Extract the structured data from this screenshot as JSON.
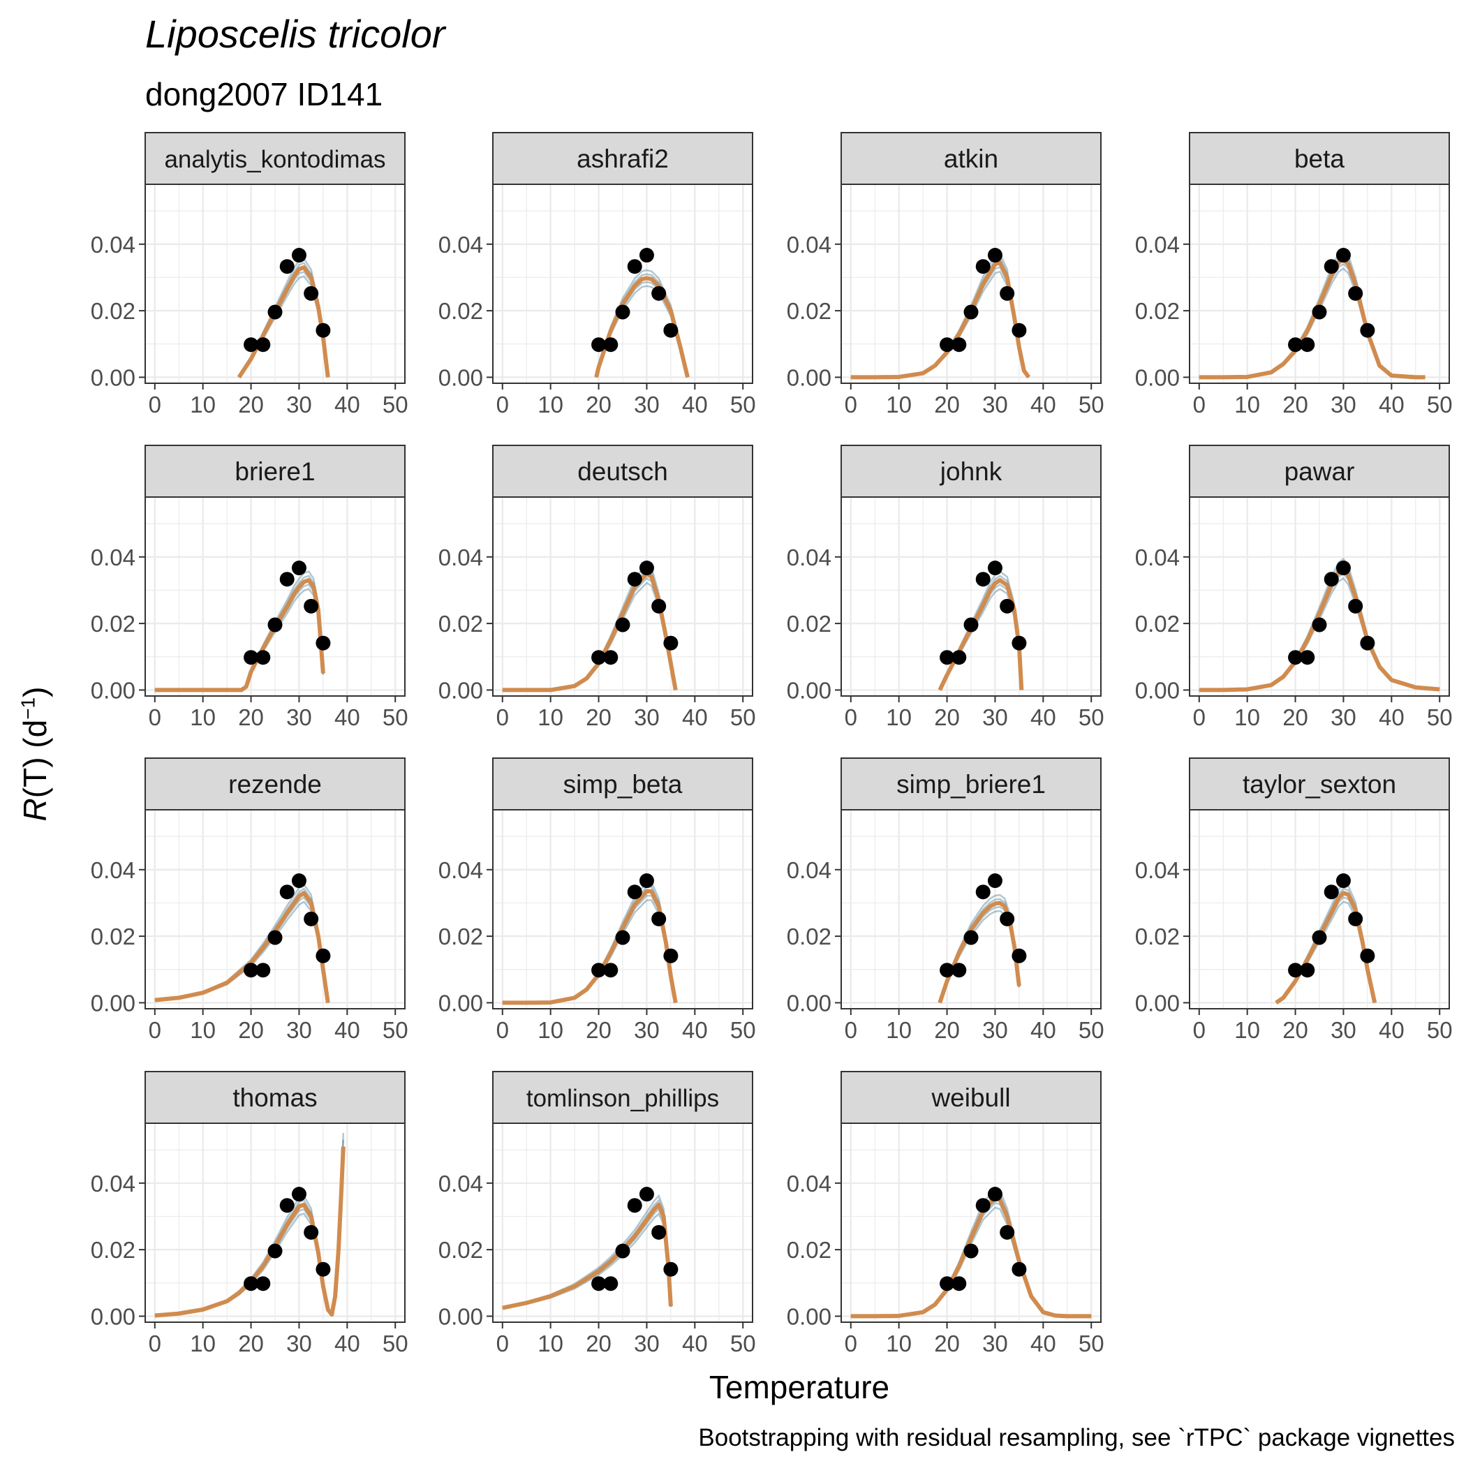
{
  "title": "Liposcelis tricolor",
  "subtitle": "dong2007 ID141",
  "ylabel_prefix": "R",
  "ylabel_mid": "(T) (d",
  "ylabel_sup": "−1",
  "ylabel_suffix": ")",
  "caption": "Bootstrapping with residual resampling, see `rTPC` package vignettes",
  "colors": {
    "observed_point": "#000000",
    "fitted_line": "#d08b4e",
    "bootstrap_lines": "#1f5b78",
    "strip_fill": "#d9d9d9",
    "grid": "#ebebeb",
    "panel_border": "#333333"
  },
  "chart_data": {
    "type": "line",
    "facet": "model",
    "xlabel": "Temperature",
    "ylabel": "R(T) (d−1)",
    "xlim": [
      -2,
      52
    ],
    "ylim": [
      -0.0018,
      0.058
    ],
    "xticks": [
      0,
      10,
      20,
      30,
      40,
      50
    ],
    "yticks": [
      0.0,
      0.02,
      0.04
    ],
    "ytick_labels": [
      "0.00",
      "0.02",
      "0.04"
    ],
    "grid": true,
    "observed": {
      "x": [
        20,
        22.5,
        25,
        27.5,
        30,
        32.5,
        35
      ],
      "y": [
        0.0098,
        0.0098,
        0.0196,
        0.0333,
        0.0367,
        0.0252,
        0.0141
      ]
    },
    "panels": [
      {
        "model": "analytis_kontodimas",
        "fit": {
          "x": [
            17.5,
            20,
            22.5,
            25,
            27.5,
            29,
            30,
            31,
            32.5,
            34,
            35,
            36
          ],
          "y": [
            0,
            0.0055,
            0.0125,
            0.0195,
            0.0265,
            0.0305,
            0.0325,
            0.033,
            0.03,
            0.021,
            0.012,
            0
          ]
        }
      },
      {
        "model": "ashrafi2",
        "fit": {
          "x": [
            19.5,
            20,
            22.5,
            25,
            27.5,
            29,
            30,
            31,
            32.5,
            35,
            37,
            38.5
          ],
          "y": [
            0,
            0.003,
            0.014,
            0.022,
            0.0275,
            0.0295,
            0.0298,
            0.0295,
            0.0275,
            0.02,
            0.009,
            0
          ]
        }
      },
      {
        "model": "atkin",
        "fit": {
          "x": [
            0,
            5,
            10,
            15,
            17.5,
            20,
            22.5,
            25,
            27.5,
            30,
            31,
            32.5,
            34,
            35,
            36,
            37
          ],
          "y": [
            0,
            0,
            0.0001,
            0.0012,
            0.0035,
            0.0075,
            0.013,
            0.02,
            0.028,
            0.034,
            0.0345,
            0.03,
            0.018,
            0.009,
            0.002,
            0
          ]
        }
      },
      {
        "model": "beta",
        "fit": {
          "x": [
            0,
            5,
            10,
            15,
            17.5,
            20,
            22.5,
            25,
            27.5,
            29,
            30,
            31,
            32.5,
            35,
            37.5,
            40,
            45,
            47
          ],
          "y": [
            0,
            0,
            0.0001,
            0.0015,
            0.004,
            0.008,
            0.014,
            0.022,
            0.0305,
            0.0345,
            0.0355,
            0.034,
            0.028,
            0.0135,
            0.0035,
            0.0005,
            0,
            0
          ]
        }
      },
      {
        "model": "briere1",
        "fit": {
          "x": [
            0,
            5,
            10,
            15,
            18,
            19,
            20,
            22.5,
            25,
            27.5,
            29,
            30,
            31,
            32,
            33,
            34,
            35
          ],
          "y": [
            0,
            0,
            0,
            0,
            0,
            0.001,
            0.0055,
            0.0125,
            0.019,
            0.025,
            0.029,
            0.031,
            0.0325,
            0.033,
            0.031,
            0.024,
            0.005
          ]
        }
      },
      {
        "model": "deutsch",
        "fit": {
          "x": [
            0,
            5,
            10,
            15,
            17.5,
            20,
            22.5,
            25,
            27.5,
            30,
            31,
            32.5,
            34,
            35,
            36
          ],
          "y": [
            0,
            0,
            0,
            0.0012,
            0.0035,
            0.008,
            0.015,
            0.023,
            0.031,
            0.035,
            0.034,
            0.027,
            0.016,
            0.008,
            0
          ]
        }
      },
      {
        "model": "johnk",
        "fit": {
          "x": [
            18.5,
            20,
            22.5,
            25,
            27.5,
            29,
            30,
            31,
            32.5,
            34,
            35,
            35.5
          ],
          "y": [
            0,
            0.0045,
            0.0115,
            0.0185,
            0.0255,
            0.03,
            0.032,
            0.033,
            0.0315,
            0.024,
            0.013,
            0
          ]
        }
      },
      {
        "model": "pawar",
        "fit": {
          "x": [
            0,
            5,
            10,
            15,
            17.5,
            20,
            22.5,
            25,
            27.5,
            29,
            30,
            31,
            32.5,
            35,
            37.5,
            40,
            45,
            50
          ],
          "y": [
            0,
            0,
            0.0002,
            0.0015,
            0.004,
            0.0085,
            0.015,
            0.023,
            0.0315,
            0.0355,
            0.0365,
            0.0345,
            0.028,
            0.015,
            0.007,
            0.003,
            0.0008,
            0.0002
          ]
        }
      },
      {
        "model": "rezende",
        "fit": {
          "x": [
            0,
            5,
            10,
            15,
            17.5,
            20,
            22.5,
            25,
            27.5,
            30,
            31,
            32.5,
            34,
            35,
            36
          ],
          "y": [
            0.0008,
            0.0015,
            0.003,
            0.006,
            0.009,
            0.012,
            0.0165,
            0.0215,
            0.027,
            0.032,
            0.033,
            0.03,
            0.02,
            0.01,
            0
          ]
        }
      },
      {
        "model": "simp_beta",
        "fit": {
          "x": [
            0,
            5,
            10,
            15,
            17.5,
            20,
            22.5,
            25,
            27.5,
            30,
            31,
            32.5,
            34,
            35,
            36
          ],
          "y": [
            0,
            0,
            0.0001,
            0.0015,
            0.004,
            0.0085,
            0.015,
            0.0225,
            0.0295,
            0.0335,
            0.0335,
            0.029,
            0.018,
            0.008,
            0
          ]
        }
      },
      {
        "model": "simp_briere1",
        "fit": {
          "x": [
            18.5,
            20,
            22.5,
            25,
            27.5,
            29,
            30,
            31,
            32,
            33,
            34,
            35
          ],
          "y": [
            0,
            0.0065,
            0.015,
            0.022,
            0.027,
            0.029,
            0.0298,
            0.03,
            0.029,
            0.025,
            0.017,
            0.005
          ]
        }
      },
      {
        "model": "taylor_sexton",
        "fit": {
          "x": [
            16,
            17.5,
            20,
            22.5,
            25,
            27.5,
            29,
            30,
            31,
            32.5,
            34,
            35,
            36.5
          ],
          "y": [
            0,
            0.0015,
            0.0065,
            0.013,
            0.02,
            0.027,
            0.0315,
            0.033,
            0.0325,
            0.028,
            0.018,
            0.01,
            0
          ]
        }
      },
      {
        "model": "thomas",
        "fit": {
          "x": [
            0,
            5,
            10,
            15,
            17.5,
            20,
            22.5,
            25,
            27.5,
            30,
            31,
            32.5,
            34,
            35,
            36,
            36.8,
            37.5,
            38.2,
            38.8,
            39.2
          ],
          "y": [
            0.0002,
            0.0008,
            0.002,
            0.0045,
            0.007,
            0.0105,
            0.015,
            0.021,
            0.0275,
            0.033,
            0.0335,
            0.03,
            0.019,
            0.009,
            0.002,
            0.0005,
            0.006,
            0.02,
            0.038,
            0.051
          ]
        }
      },
      {
        "model": "tomlinson_phillips",
        "fit": {
          "x": [
            0,
            5,
            10,
            15,
            20,
            22.5,
            25,
            27.5,
            30,
            31.5,
            32.5,
            33.5,
            34.5,
            35
          ],
          "y": [
            0.0025,
            0.004,
            0.006,
            0.009,
            0.0135,
            0.0165,
            0.02,
            0.024,
            0.029,
            0.032,
            0.0335,
            0.03,
            0.015,
            0.003
          ]
        }
      },
      {
        "model": "weibull",
        "fit": {
          "x": [
            0,
            5,
            10,
            15,
            17.5,
            20,
            22.5,
            25,
            27.5,
            30,
            31,
            32.5,
            35,
            37.5,
            40,
            42.5,
            45,
            50
          ],
          "y": [
            0,
            0,
            0.0001,
            0.0012,
            0.0035,
            0.008,
            0.015,
            0.0235,
            0.0315,
            0.0355,
            0.035,
            0.03,
            0.0165,
            0.006,
            0.0012,
            0.0002,
            0,
            0
          ]
        }
      }
    ]
  }
}
